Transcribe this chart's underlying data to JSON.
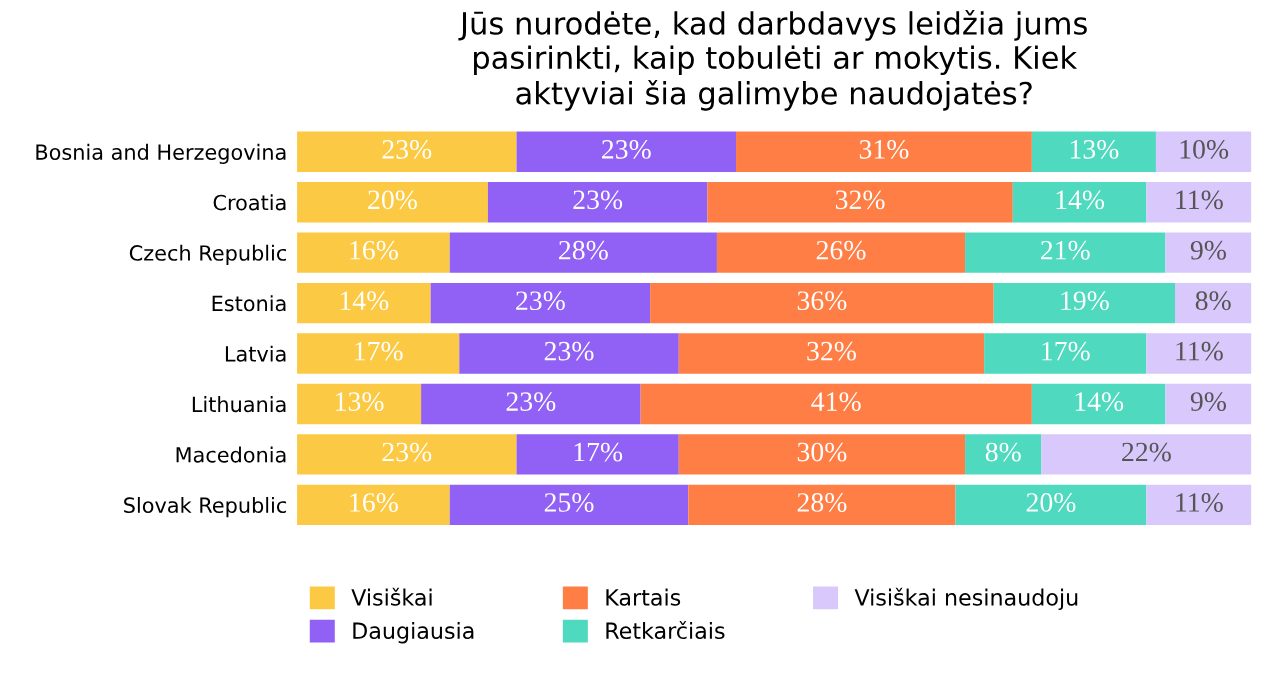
{
  "chart_data": {
    "type": "bar",
    "orientation": "horizontal",
    "stacked": true,
    "title": "Jūs nurodėte, kad darbdavys leidžia jums\npasirinkti, kaip tobulėti ar mokytis. Kiek\naktyviai šia galimybe naudojatės?",
    "categories": [
      "Bosnia and Herzegovina",
      "Croatia",
      "Czech Republic",
      "Estonia",
      "Latvia",
      "Lithuania",
      "Macedonia",
      "Slovak Republic"
    ],
    "xlim": [
      0,
      100
    ],
    "tick_labels": "y",
    "grid": false,
    "legend": "bottom",
    "series": [
      {
        "name": "Visiškai",
        "color": "#fbc943",
        "values": [
          23,
          20,
          16,
          14,
          17,
          13,
          23,
          16
        ],
        "value_labels": [
          "23%",
          "20%",
          "16%",
          "14%",
          "17%",
          "13%",
          "23%",
          "16%"
        ]
      },
      {
        "name": "Daugiausia",
        "color": "#9161f5",
        "values": [
          23,
          23,
          28,
          23,
          23,
          23,
          17,
          25
        ],
        "value_labels": [
          "23%",
          "23%",
          "28%",
          "23%",
          "23%",
          "23%",
          "17%",
          "25%"
        ]
      },
      {
        "name": "Kartais",
        "color": "#ff7e45",
        "values": [
          31,
          32,
          26,
          36,
          32,
          41,
          30,
          28
        ],
        "value_labels": [
          "31%",
          "32%",
          "26%",
          "36%",
          "32%",
          "41%",
          "30%",
          "28%"
        ]
      },
      {
        "name": "Retkarčiais",
        "color": "#4fd9bf",
        "values": [
          13,
          14,
          21,
          19,
          17,
          14,
          8,
          20
        ],
        "value_labels": [
          "13%",
          "14%",
          "21%",
          "19%",
          "17%",
          "14%",
          "8%",
          "20%"
        ]
      },
      {
        "name": "Visiškai nesinaudoju",
        "color": "#d9c8fc",
        "values": [
          10,
          11,
          9,
          8,
          11,
          9,
          22,
          11
        ],
        "value_labels": [
          "10%",
          "11%",
          "9%",
          "8%",
          "11%",
          "9%",
          "22%",
          "11%"
        ]
      }
    ]
  }
}
